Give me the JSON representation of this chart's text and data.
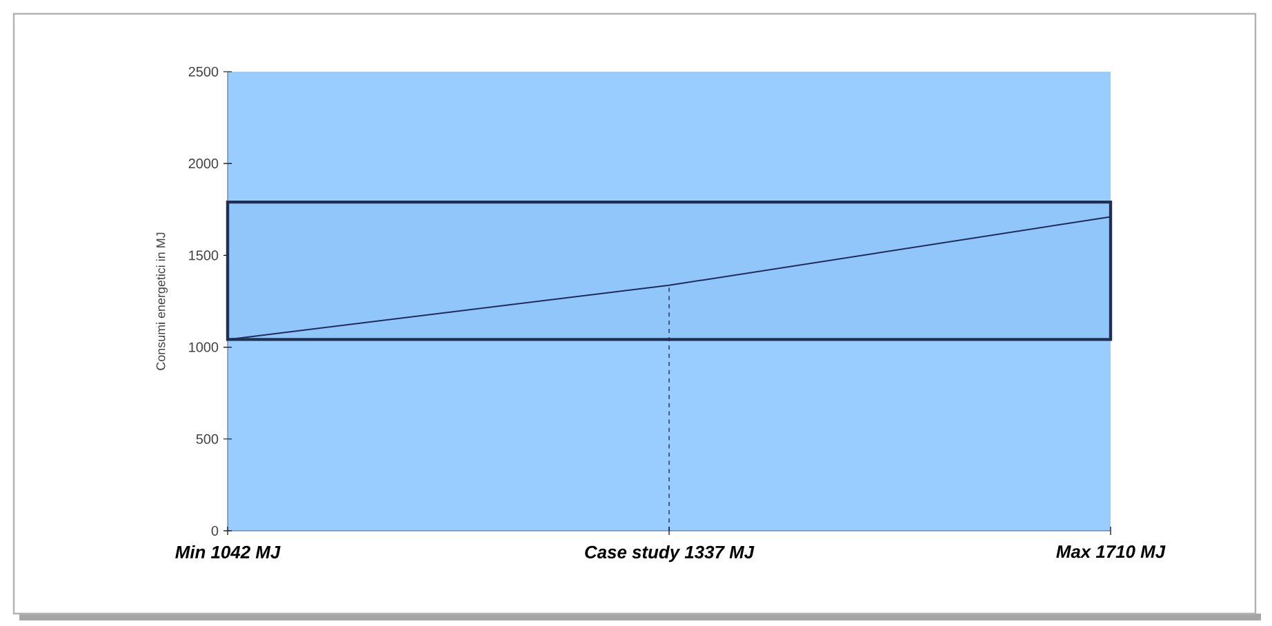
{
  "chart_data": {
    "type": "line",
    "ylabel": "Consumi energetici in MJ",
    "categories": [
      "Min 1042 MJ",
      "Case study 1337 MJ",
      "Max 1710 MJ"
    ],
    "series": [
      {
        "color": "#1f2a5c",
        "values": [
          1042,
          1337,
          1710
        ]
      }
    ],
    "ylim": [
      0,
      2500
    ],
    "yticks": [
      0,
      500,
      1000,
      1500,
      2000,
      2500
    ],
    "bands": [
      {
        "axis": "y",
        "from": 1042,
        "to": 1790,
        "color": "#1f3050"
      }
    ],
    "ref_lines": [
      {
        "axis": "x",
        "value": "Case study 1337 MJ",
        "line_style": "dashed",
        "color": "#1f2a5c"
      }
    ],
    "marker": "none",
    "line_style": "solid"
  }
}
